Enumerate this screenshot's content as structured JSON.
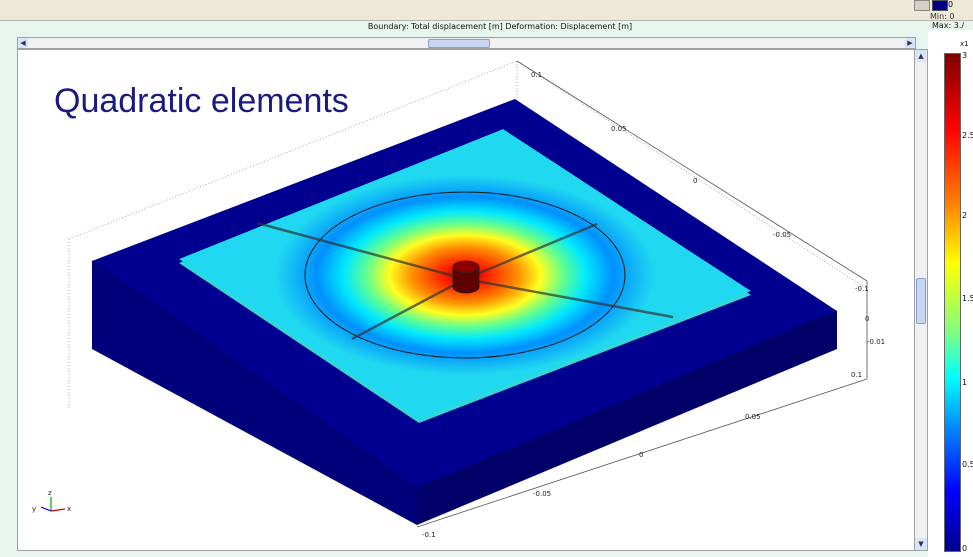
{
  "plot": {
    "title": "Boundary: Total displacement [m]  Deformation: Displacement [m]",
    "min_label": "Min: 0",
    "max_label": "Max: 3./",
    "legend_zero": "0"
  },
  "slide": {
    "title": "Quadratic elements"
  },
  "colorbar": {
    "exponent": "x1",
    "ticks": [
      "3",
      "2.5",
      "2",
      "1.5",
      "1",
      "0.5",
      "0"
    ]
  },
  "axes": {
    "right_ticks": [
      "0.1",
      "0.05",
      "0",
      "-0.05",
      "-0.1"
    ],
    "z_ticks": [
      "0",
      "-0.01"
    ],
    "bottom_ticks": [
      "0.1",
      "0.05",
      "0",
      "-0.05",
      "-0.1"
    ]
  },
  "colors": {
    "base": "#00008b",
    "plate_edge": "#40e0d0",
    "hot": "#ff2000"
  }
}
